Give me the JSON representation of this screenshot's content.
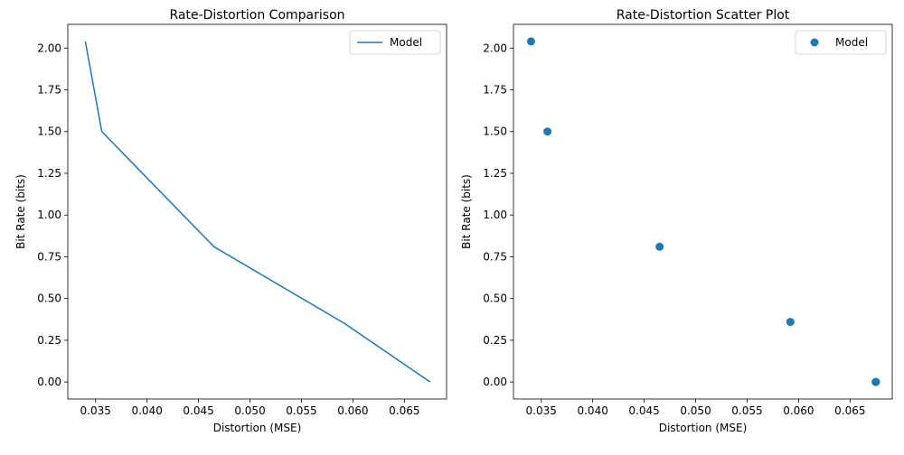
{
  "chart_data": [
    {
      "type": "line",
      "title": "Rate-Distortion Comparison",
      "xlabel": "Distortion (MSE)",
      "ylabel": "Bit Rate (bits)",
      "xlim": [
        0.0323,
        0.0691
      ],
      "ylim": [
        -0.102,
        2.142
      ],
      "x_ticks": [
        0.035,
        0.04,
        0.045,
        0.05,
        0.055,
        0.06,
        0.065
      ],
      "x_tick_labels": [
        "0.035",
        "0.040",
        "0.045",
        "0.050",
        "0.055",
        "0.060",
        "0.065"
      ],
      "y_ticks": [
        0.0,
        0.25,
        0.5,
        0.75,
        1.0,
        1.25,
        1.5,
        1.75,
        2.0
      ],
      "y_tick_labels": [
        "0.00",
        "0.25",
        "0.50",
        "0.75",
        "1.00",
        "1.25",
        "1.50",
        "1.75",
        "2.00"
      ],
      "grid": false,
      "legend": "upper right",
      "series": [
        {
          "name": "Model",
          "color": "#1f77b4",
          "x": [
            0.034,
            0.0356,
            0.0465,
            0.0592,
            0.0675
          ],
          "y": [
            2.04,
            1.5,
            0.81,
            0.35,
            0.0
          ]
        }
      ]
    },
    {
      "type": "scatter",
      "title": "Rate-Distortion Scatter Plot",
      "xlabel": "Distortion (MSE)",
      "ylabel": "Bit Rate (bits)",
      "xlim": [
        0.0323,
        0.0691
      ],
      "ylim": [
        -0.102,
        2.142
      ],
      "x_ticks": [
        0.035,
        0.04,
        0.045,
        0.05,
        0.055,
        0.06,
        0.065
      ],
      "x_tick_labels": [
        "0.035",
        "0.040",
        "0.045",
        "0.050",
        "0.055",
        "0.060",
        "0.065"
      ],
      "y_ticks": [
        0.0,
        0.25,
        0.5,
        0.75,
        1.0,
        1.25,
        1.5,
        1.75,
        2.0
      ],
      "y_tick_labels": [
        "0.00",
        "0.25",
        "0.50",
        "0.75",
        "1.00",
        "1.25",
        "1.50",
        "1.75",
        "2.00"
      ],
      "grid": false,
      "legend": "upper right",
      "series": [
        {
          "name": "Model",
          "color": "#1f77b4",
          "x": [
            0.034,
            0.0356,
            0.0465,
            0.0592,
            0.0675,
            0.0675,
            0.0675
          ],
          "y": [
            2.04,
            1.5,
            0.81,
            0.36,
            0.0,
            0.0,
            0.0
          ]
        }
      ]
    }
  ]
}
